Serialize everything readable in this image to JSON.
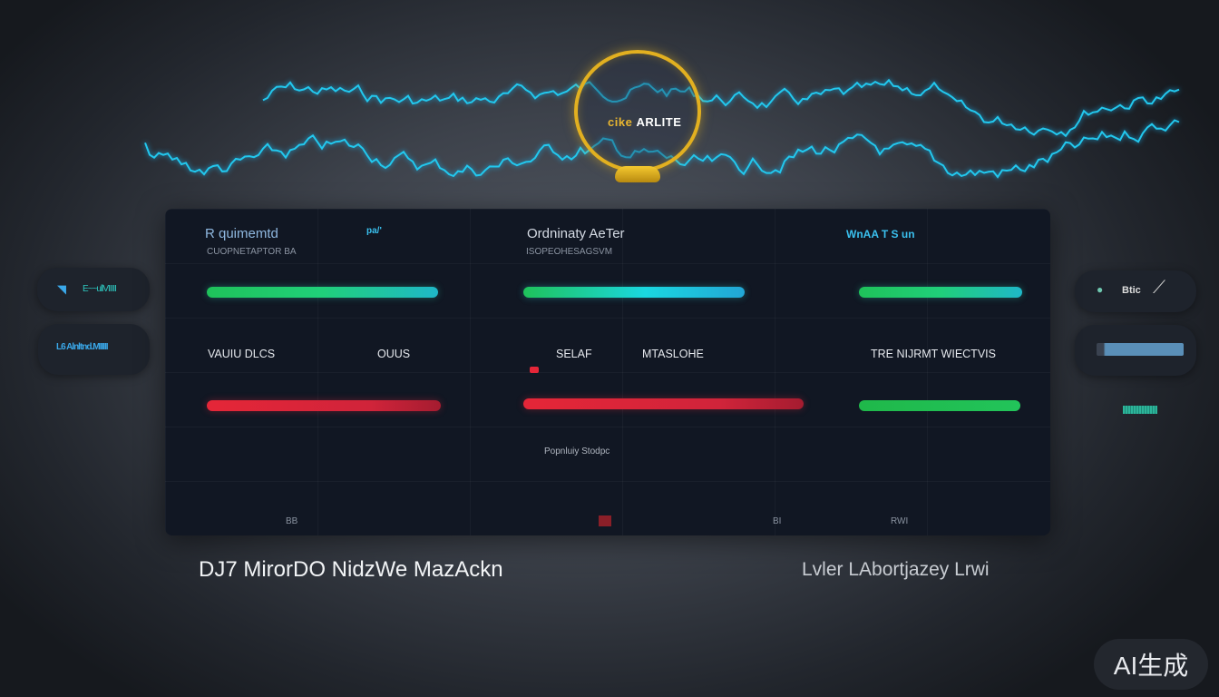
{
  "colors": {
    "accent_cyan": "#22c8ee",
    "accent_gold": "#e2b020",
    "green": "#1fc25a",
    "red": "#e52638",
    "panel": "#111723"
  },
  "badge": {
    "prefix": "cike",
    "text": "ARLITE"
  },
  "panel": {
    "col1": {
      "title": "R quimemtd",
      "tag": "pa/'",
      "subtitle": "CUOPNETAPTOR BA",
      "progress_top": 100,
      "label_a": "VAUIU DLCS",
      "label_b": "OUUS"
    },
    "col2": {
      "title": "Ordninaty AeTer",
      "subtitle": "ISOPEOHESAGSVM",
      "label_a": "SELAF",
      "label_b": "MTASLOHE"
    },
    "col3": {
      "title": "WnAA T S un",
      "label_a": "TRE NIJRMT WIECTVIS"
    },
    "footer_caption": "Popnluiy Stodpc",
    "footer_items": [
      "BB",
      "BI",
      "RWI"
    ]
  },
  "left_widgets": [
    {
      "icon": "wifi-icon",
      "text": "E~~ullVIIIII"
    },
    {
      "icon": "",
      "text": "L6 Alnltnd.MIIIII"
    }
  ],
  "right_widgets": [
    {
      "icon": "chip-icon",
      "text": "Btic"
    }
  ],
  "bottom": {
    "left_title": "DJ7 MirorDO NidzWe MazAckn",
    "right_title": "Lvler LAbortjazey Lrwi"
  },
  "watermark": "AI生成"
}
